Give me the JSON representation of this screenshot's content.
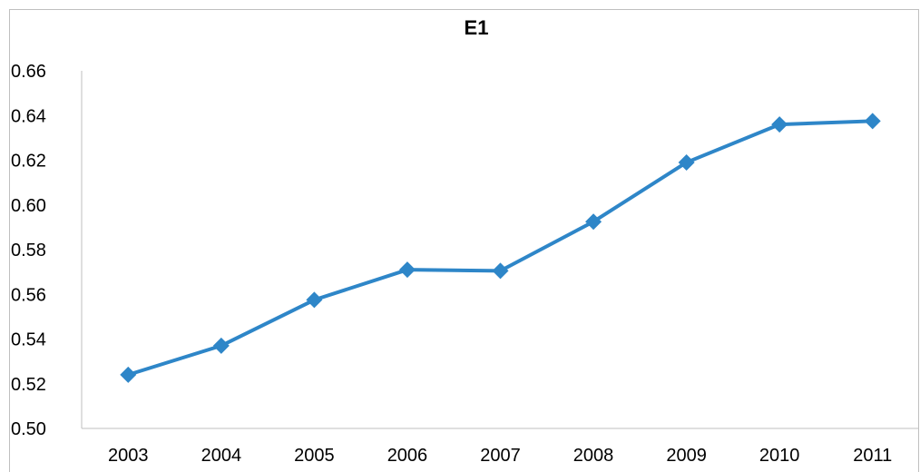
{
  "chart_data": {
    "type": "line",
    "title": "E1",
    "xlabel": "",
    "ylabel": "",
    "categories": [
      "2003",
      "2004",
      "2005",
      "2006",
      "2007",
      "2008",
      "2009",
      "2010",
      "2011"
    ],
    "series": [
      {
        "values": [
          0.524,
          0.537,
          0.5575,
          0.571,
          0.5705,
          0.5925,
          0.619,
          0.636,
          0.6375
        ],
        "color": "#2e86c8",
        "marker": "diamond"
      }
    ],
    "ylim": [
      0.5,
      0.66
    ],
    "yticks": [
      "0.50",
      "0.52",
      "0.54",
      "0.56",
      "0.58",
      "0.60",
      "0.62",
      "0.64",
      "0.66"
    ],
    "grid": false,
    "legend": "none"
  }
}
